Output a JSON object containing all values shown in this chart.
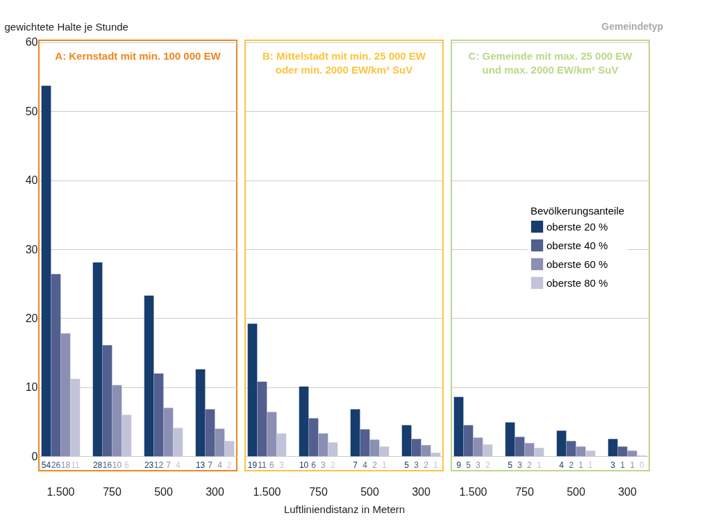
{
  "chart_data": [
    {
      "type": "bar",
      "title": "A: Kernstadt mit min. 100 000 EW",
      "ylabel": "gewichtete Halte je Stunde",
      "categories": [
        "1.500",
        "750",
        "500",
        "300"
      ],
      "ylim": [
        -2.1,
        60.3
      ],
      "yticks": [
        0,
        10,
        20,
        30,
        40,
        50,
        60
      ],
      "grid": "y",
      "legend": false,
      "series": [
        {
          "color": "#173c6e",
          "values": [
            53.7,
            28.1,
            23.3,
            12.6
          ],
          "value_labels": [
            "54",
            "28",
            "23",
            "13"
          ]
        },
        {
          "color": "#525f8f",
          "values": [
            26.4,
            16.1,
            12.0,
            6.8
          ],
          "value_labels": [
            "26",
            "16",
            "12",
            "7"
          ]
        },
        {
          "color": "#8b8fb4",
          "values": [
            17.8,
            10.3,
            7.0,
            4.0
          ],
          "value_labels": [
            "18",
            "10",
            "7",
            "4"
          ]
        },
        {
          "color": "#c2c3d8",
          "values": [
            11.2,
            6.0,
            4.1,
            2.2
          ],
          "value_labels": [
            "11",
            "6",
            "4",
            "2"
          ]
        }
      ]
    },
    {
      "type": "bar",
      "title": "B: Mittelstadt mit min. 25 000 EW\noder min. 2000 EW/km² SuV",
      "xlabel": "Luftliniendistanz in Metern",
      "categories": [
        "1.500",
        "750",
        "500",
        "300"
      ],
      "ylim": [
        -2.1,
        60.3
      ],
      "tick_labels": "x",
      "grid": "y",
      "legend": false,
      "series": [
        {
          "color": "#173c6e",
          "values": [
            19.2,
            10.1,
            6.8,
            4.5
          ],
          "value_labels": [
            "19",
            "10",
            "7",
            "5"
          ]
        },
        {
          "color": "#525f8f",
          "values": [
            10.8,
            5.5,
            3.9,
            2.5
          ],
          "value_labels": [
            "11",
            "6",
            "4",
            "3"
          ]
        },
        {
          "color": "#8b8fb4",
          "values": [
            6.4,
            3.3,
            2.4,
            1.6
          ],
          "value_labels": [
            "6",
            "3",
            "2",
            "2"
          ]
        },
        {
          "color": "#c2c3d8",
          "values": [
            3.3,
            2.0,
            1.4,
            0.5
          ],
          "value_labels": [
            "3",
            "2",
            "1",
            "1"
          ]
        }
      ]
    },
    {
      "type": "bar",
      "title": "C: Gemeinde mit max. 25 000 EW\nund max. 2000 EW/km² SuV",
      "legend_title": "Bevölkerungsanteile",
      "annotations": [
        "Gemeindetyp"
      ],
      "categories": [
        "1.500",
        "750",
        "500",
        "300"
      ],
      "ylim": [
        -2.1,
        60.3
      ],
      "tick_labels": "x",
      "grid": "y",
      "legend": "right",
      "series": [
        {
          "name": "oberste 20 %",
          "color": "#173c6e",
          "values": [
            8.6,
            4.9,
            3.7,
            2.5
          ],
          "value_labels": [
            "9",
            "5",
            "4",
            "3"
          ]
        },
        {
          "name": "oberste 40 %",
          "color": "#525f8f",
          "values": [
            4.5,
            2.8,
            2.2,
            1.4
          ],
          "value_labels": [
            "5",
            "3",
            "2",
            "1"
          ]
        },
        {
          "name": "oberste 60 %",
          "color": "#8b8fb4",
          "values": [
            2.7,
            1.9,
            1.4,
            0.8
          ],
          "value_labels": [
            "3",
            "2",
            "1",
            "1"
          ]
        },
        {
          "name": "oberste 80 %",
          "color": "#c2c3d8",
          "values": [
            1.7,
            1.2,
            0.8,
            0.1
          ],
          "value_labels": [
            "2",
            "1",
            "1",
            "0"
          ]
        }
      ]
    }
  ]
}
